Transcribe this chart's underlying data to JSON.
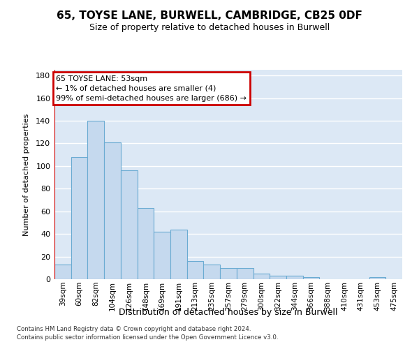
{
  "title1": "65, TOYSE LANE, BURWELL, CAMBRIDGE, CB25 0DF",
  "title2": "Size of property relative to detached houses in Burwell",
  "xlabel": "Distribution of detached houses by size in Burwell",
  "ylabel": "Number of detached properties",
  "categories": [
    "39sqm",
    "60sqm",
    "82sqm",
    "104sqm",
    "126sqm",
    "148sqm",
    "169sqm",
    "191sqm",
    "213sqm",
    "235sqm",
    "257sqm",
    "279sqm",
    "300sqm",
    "322sqm",
    "344sqm",
    "366sqm",
    "388sqm",
    "410sqm",
    "431sqm",
    "453sqm",
    "475sqm"
  ],
  "values": [
    13,
    108,
    140,
    121,
    96,
    63,
    42,
    44,
    16,
    13,
    10,
    10,
    5,
    3,
    3,
    2,
    0,
    0,
    0,
    2,
    0
  ],
  "bar_color": "#c5d9ee",
  "bar_edge_color": "#6aabd2",
  "vline_color": "#cc0000",
  "annotation_line1": "65 TOYSE LANE: 53sqm",
  "annotation_line2": "← 1% of detached houses are smaller (4)",
  "annotation_line3": "99% of semi-detached houses are larger (686) →",
  "annotation_box_edgecolor": "#cc0000",
  "ylim": [
    0,
    185
  ],
  "yticks": [
    0,
    20,
    40,
    60,
    80,
    100,
    120,
    140,
    160,
    180
  ],
  "plot_bg_color": "#dce8f5",
  "fig_bg_color": "#ffffff",
  "grid_color": "#ffffff",
  "footer1": "Contains HM Land Registry data © Crown copyright and database right 2024.",
  "footer2": "Contains public sector information licensed under the Open Government Licence v3.0.",
  "title1_fontsize": 11,
  "title2_fontsize": 9,
  "ylabel_fontsize": 8,
  "xlabel_fontsize": 9
}
